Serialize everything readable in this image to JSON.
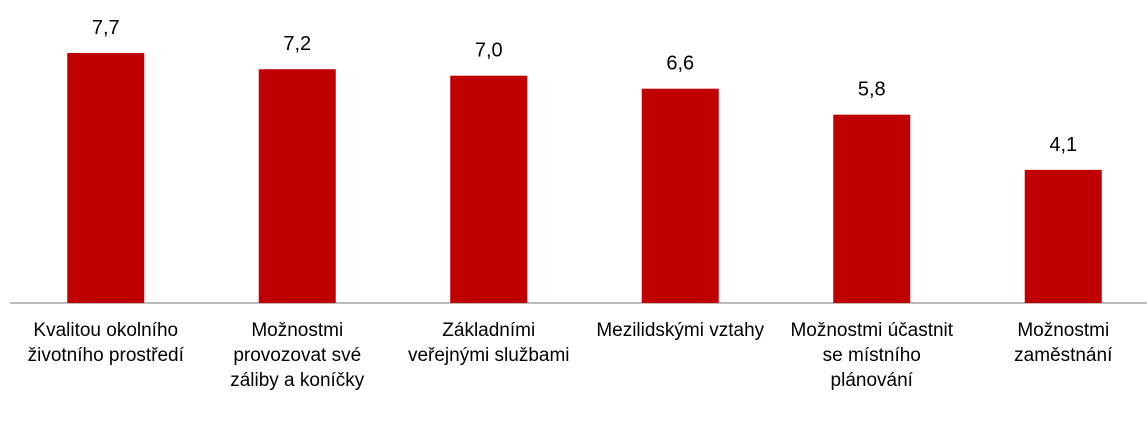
{
  "chart_data": {
    "type": "bar",
    "categories": [
      "Kvalitou okolního životního prostředí",
      "Možnostmi provozovat své záliby a koníčky",
      "Základními veřejnými službami",
      "Mezilidskými vztahy",
      "Možnostmi účastnit se místního plánování",
      "Možnostmi zaměstnání"
    ],
    "values": [
      7.7,
      7.2,
      7.0,
      6.6,
      5.8,
      4.1
    ],
    "value_labels": [
      "7,7",
      "7,2",
      "7,0",
      "6,6",
      "5,8",
      "4,1"
    ],
    "color": "#c00000"
  }
}
